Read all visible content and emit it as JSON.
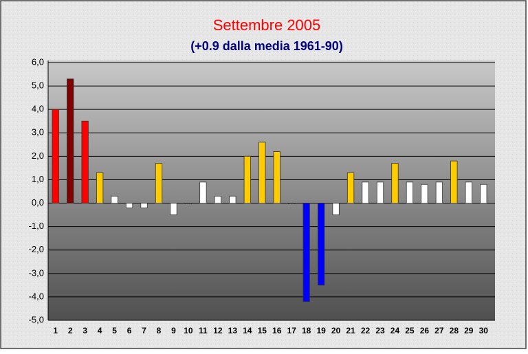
{
  "chart_data": {
    "type": "bar",
    "title": "Settembre 2005",
    "subtitle": "(+0.9 dalla media 1961-90)",
    "categories": [
      "1",
      "2",
      "3",
      "4",
      "5",
      "6",
      "7",
      "8",
      "9",
      "10",
      "11",
      "12",
      "13",
      "14",
      "15",
      "16",
      "17",
      "18",
      "19",
      "20",
      "21",
      "22",
      "23",
      "24",
      "25",
      "26",
      "27",
      "28",
      "29",
      "30"
    ],
    "values": [
      4.0,
      5.3,
      3.5,
      1.3,
      0.3,
      -0.2,
      -0.2,
      1.7,
      -0.5,
      0.0,
      0.9,
      0.3,
      0.3,
      2.0,
      2.6,
      2.2,
      0.0,
      -4.2,
      -3.5,
      -0.5,
      1.3,
      0.9,
      0.9,
      1.7,
      0.9,
      0.8,
      0.9,
      1.8,
      0.9,
      0.8
    ],
    "colors": [
      "#ff0000",
      "#800000",
      "#ff0000",
      "#ffcc00",
      "#ffffff",
      "#ffffff",
      "#ffffff",
      "#ffcc00",
      "#ffffff",
      "#ffffff",
      "#ffffff",
      "#ffffff",
      "#ffffff",
      "#ffcc00",
      "#ffcc00",
      "#ffcc00",
      "#ffffff",
      "#0000ff",
      "#0000ff",
      "#ffffff",
      "#ffcc00",
      "#ffffff",
      "#ffffff",
      "#ffcc00",
      "#ffffff",
      "#ffffff",
      "#ffffff",
      "#ffcc00",
      "#ffffff",
      "#ffffff"
    ],
    "ylim": [
      -5,
      6
    ],
    "yticks": [
      {
        "value": -5,
        "label": "-5,0"
      },
      {
        "value": -4,
        "label": "-4,0"
      },
      {
        "value": -3,
        "label": "-3,0"
      },
      {
        "value": -2,
        "label": "-2,0"
      },
      {
        "value": -1,
        "label": "-1,0"
      },
      {
        "value": 0,
        "label": "0,0"
      },
      {
        "value": 1,
        "label": "1,0"
      },
      {
        "value": 2,
        "label": "2,0"
      },
      {
        "value": 3,
        "label": "3,0"
      },
      {
        "value": 4,
        "label": "4,0"
      },
      {
        "value": 5,
        "label": "5,0"
      },
      {
        "value": 6,
        "label": "6,0"
      }
    ],
    "grid": true
  }
}
